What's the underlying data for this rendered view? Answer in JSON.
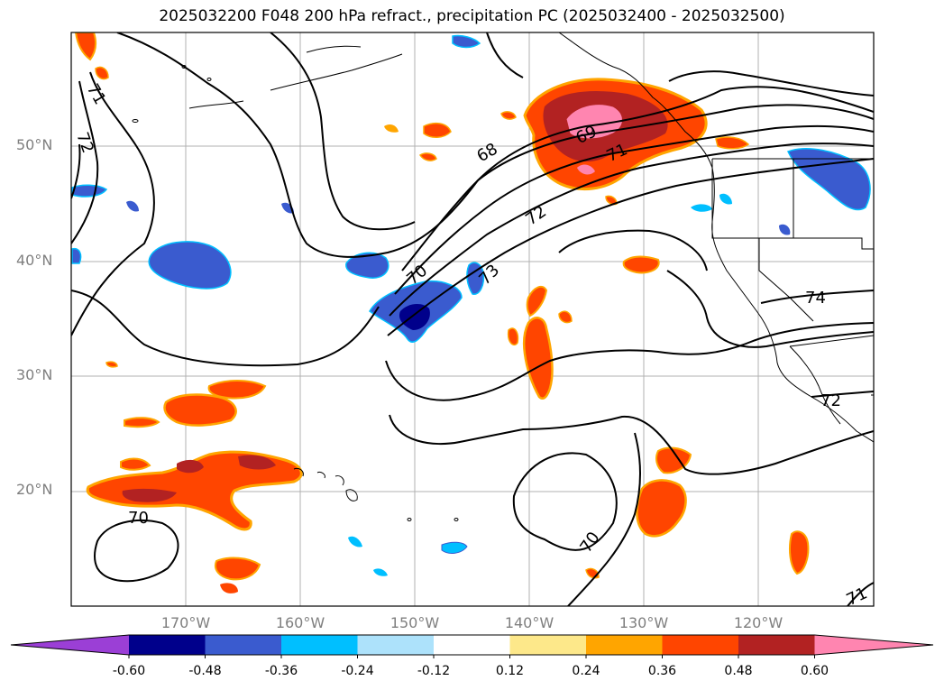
{
  "title": "2025032200 F048 200 hPa refract., precipitation PC (2025032400 - 2025032500)",
  "lat_labels": [
    "50°N",
    "40°N",
    "30°N",
    "20°N"
  ],
  "lon_labels": [
    "170°W",
    "160°W",
    "150°W",
    "140°W",
    "130°W",
    "120°W"
  ],
  "contour_labels": [
    "71",
    "72",
    "70",
    "68",
    "69",
    "71",
    "72",
    "73",
    "70",
    "74",
    "72",
    "70",
    "70",
    "71"
  ],
  "colorbar": {
    "ticks": [
      "-0.60",
      "-0.48",
      "-0.36",
      "-0.24",
      "-0.12",
      "0.12",
      "0.24",
      "0.36",
      "0.48",
      "0.60"
    ],
    "colors": [
      "#9b3fd6",
      "#00008b",
      "#3a5bcf",
      "#00bfff",
      "#ade2fb",
      "#ffffff",
      "#fde88a",
      "#ffa500",
      "#ff4500",
      "#b22222",
      "#ff85b0"
    ]
  }
}
